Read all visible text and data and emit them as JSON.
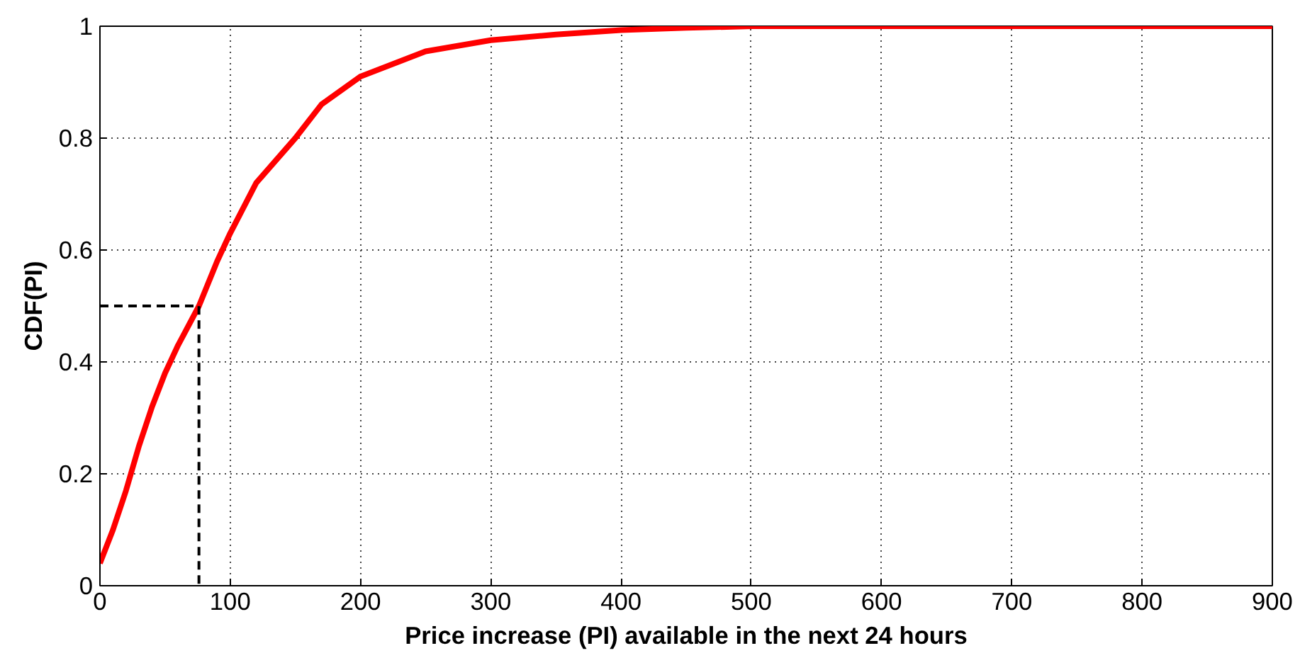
{
  "chart_data": {
    "type": "line",
    "xlabel": "Price increase (PI) available in the next 24 hours",
    "ylabel": "CDF(PI)",
    "xlim": [
      0,
      900
    ],
    "ylim": [
      0,
      1
    ],
    "xticks": [
      0,
      100,
      200,
      300,
      400,
      500,
      600,
      700,
      800,
      900
    ],
    "yticks": [
      0,
      0.2,
      0.4,
      0.6,
      0.8,
      1
    ],
    "grid": true,
    "series": [
      {
        "color": "#ff0000",
        "line_style": "solid",
        "x": [
          0,
          10,
          20,
          30,
          40,
          50,
          60,
          76,
          90,
          100,
          120,
          150,
          170,
          200,
          250,
          300,
          350,
          400,
          450,
          500,
          900
        ],
        "values": [
          0.04,
          0.1,
          0.17,
          0.25,
          0.32,
          0.38,
          0.43,
          0.5,
          0.58,
          0.63,
          0.72,
          0.8,
          0.86,
          0.91,
          0.955,
          0.975,
          0.985,
          0.993,
          0.997,
          1,
          1
        ]
      },
      {
        "color": "#000000",
        "line_style": "dashed",
        "x": [
          0,
          76,
          76
        ],
        "values": [
          0.5,
          0.5,
          0
        ]
      }
    ]
  }
}
